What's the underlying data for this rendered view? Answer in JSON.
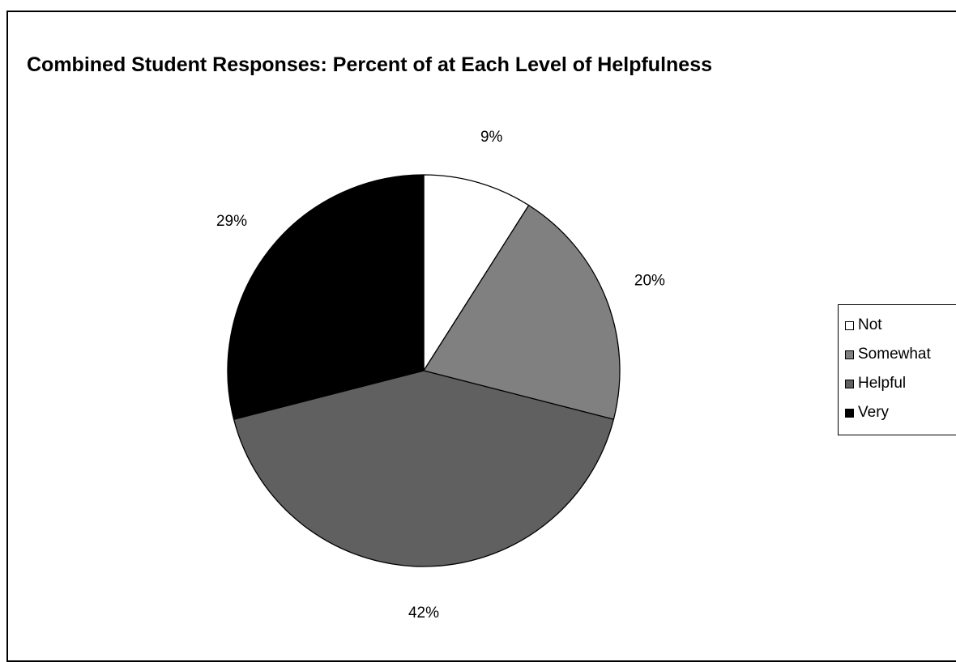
{
  "chart_data": {
    "type": "pie",
    "title": "Combined Student Responses:  Percent of at Each Level of Helpfulness",
    "categories": [
      "Not",
      "Somewhat",
      "Helpful",
      "Very"
    ],
    "values": [
      9,
      20,
      42,
      29
    ],
    "data_labels": [
      "9%",
      "20%",
      "42%",
      "29%"
    ],
    "colors": [
      "#ffffff",
      "#808080",
      "#606060",
      "#000000"
    ],
    "legend_position": "right",
    "start_angle": "12 o'clock",
    "direction": "clockwise"
  }
}
